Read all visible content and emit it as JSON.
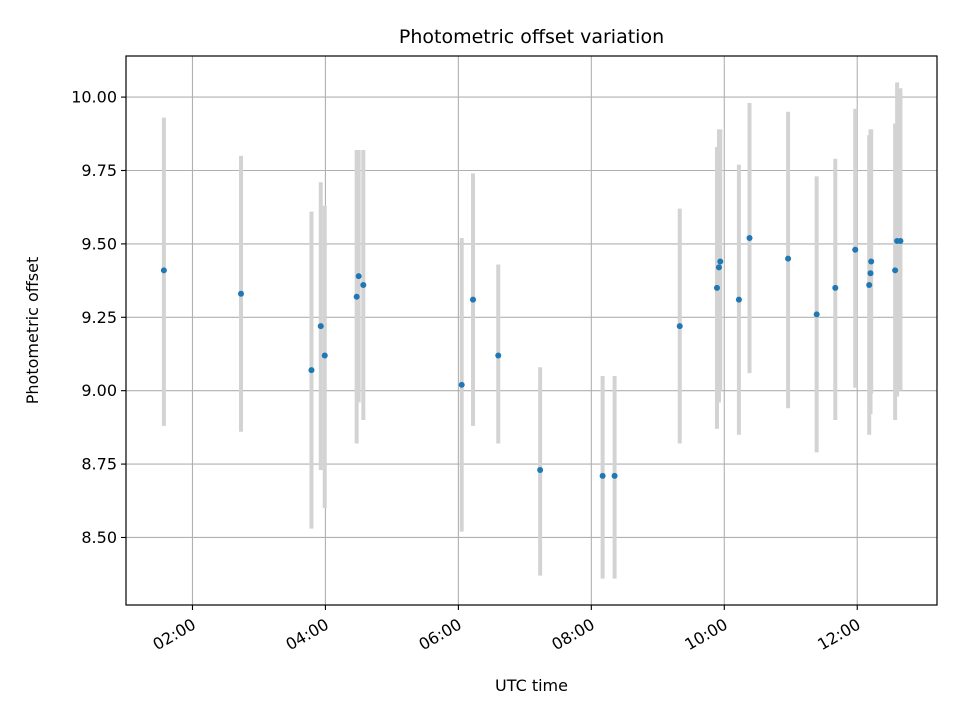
{
  "chart_data": {
    "type": "scatter",
    "title": "Photometric offset variation",
    "xlabel": "UTC time",
    "ylabel": "Photometric offset",
    "xlim_hours": [
      1.0,
      13.2
    ],
    "ylim": [
      8.27,
      10.14
    ],
    "x_ticks": [
      {
        "hour": 2,
        "label": "02:00"
      },
      {
        "hour": 4,
        "label": "04:00"
      },
      {
        "hour": 6,
        "label": "06:00"
      },
      {
        "hour": 8,
        "label": "08:00"
      },
      {
        "hour": 10,
        "label": "10:00"
      },
      {
        "hour": 12,
        "label": "12:00"
      }
    ],
    "y_ticks": [
      {
        "value": 8.5,
        "label": "8.50"
      },
      {
        "value": 8.75,
        "label": "8.75"
      },
      {
        "value": 9.0,
        "label": "9.00"
      },
      {
        "value": 9.25,
        "label": "9.25"
      },
      {
        "value": 9.5,
        "label": "9.50"
      },
      {
        "value": 9.75,
        "label": "9.75"
      },
      {
        "value": 10.0,
        "label": "10.00"
      }
    ],
    "grid": true,
    "marker_color": "#1f77b4",
    "errorbar_color": "#d3d3d3",
    "points": [
      {
        "t": 1.57,
        "y": 9.41,
        "lo": 8.88,
        "hi": 9.93
      },
      {
        "t": 2.73,
        "y": 9.33,
        "lo": 8.86,
        "hi": 9.8
      },
      {
        "t": 3.79,
        "y": 9.07,
        "lo": 8.53,
        "hi": 9.61
      },
      {
        "t": 3.93,
        "y": 9.22,
        "lo": 8.73,
        "hi": 9.71
      },
      {
        "t": 3.99,
        "y": 9.12,
        "lo": 8.6,
        "hi": 9.63
      },
      {
        "t": 4.47,
        "y": 9.32,
        "lo": 8.82,
        "hi": 9.82
      },
      {
        "t": 4.5,
        "y": 9.39,
        "lo": 8.96,
        "hi": 9.82
      },
      {
        "t": 4.57,
        "y": 9.36,
        "lo": 8.9,
        "hi": 9.82
      },
      {
        "t": 6.05,
        "y": 9.02,
        "lo": 8.52,
        "hi": 9.52
      },
      {
        "t": 6.22,
        "y": 9.31,
        "lo": 8.88,
        "hi": 9.74
      },
      {
        "t": 6.6,
        "y": 9.12,
        "lo": 8.82,
        "hi": 9.43
      },
      {
        "t": 7.23,
        "y": 8.73,
        "lo": 8.37,
        "hi": 9.08
      },
      {
        "t": 8.17,
        "y": 8.71,
        "lo": 8.36,
        "hi": 9.05
      },
      {
        "t": 8.35,
        "y": 8.71,
        "lo": 8.36,
        "hi": 9.05
      },
      {
        "t": 9.33,
        "y": 9.22,
        "lo": 8.82,
        "hi": 9.62
      },
      {
        "t": 9.89,
        "y": 9.35,
        "lo": 8.87,
        "hi": 9.83
      },
      {
        "t": 9.92,
        "y": 9.42,
        "lo": 8.96,
        "hi": 9.89
      },
      {
        "t": 9.94,
        "y": 9.44,
        "lo": 9.0,
        "hi": 9.89
      },
      {
        "t": 10.22,
        "y": 9.31,
        "lo": 8.85,
        "hi": 9.77
      },
      {
        "t": 10.38,
        "y": 9.52,
        "lo": 9.06,
        "hi": 9.98
      },
      {
        "t": 10.96,
        "y": 9.45,
        "lo": 8.94,
        "hi": 9.95
      },
      {
        "t": 11.39,
        "y": 9.26,
        "lo": 8.79,
        "hi": 9.73
      },
      {
        "t": 11.67,
        "y": 9.35,
        "lo": 8.9,
        "hi": 9.79
      },
      {
        "t": 11.97,
        "y": 9.48,
        "lo": 9.01,
        "hi": 9.96
      },
      {
        "t": 12.18,
        "y": 9.36,
        "lo": 8.85,
        "hi": 9.87
      },
      {
        "t": 12.2,
        "y": 9.4,
        "lo": 8.92,
        "hi": 9.89
      },
      {
        "t": 12.21,
        "y": 9.44,
        "lo": 8.99,
        "hi": 9.89
      },
      {
        "t": 12.57,
        "y": 9.41,
        "lo": 8.9,
        "hi": 9.91
      },
      {
        "t": 12.6,
        "y": 9.51,
        "lo": 8.98,
        "hi": 10.05
      },
      {
        "t": 12.65,
        "y": 9.51,
        "lo": 9.0,
        "hi": 10.03
      }
    ]
  }
}
